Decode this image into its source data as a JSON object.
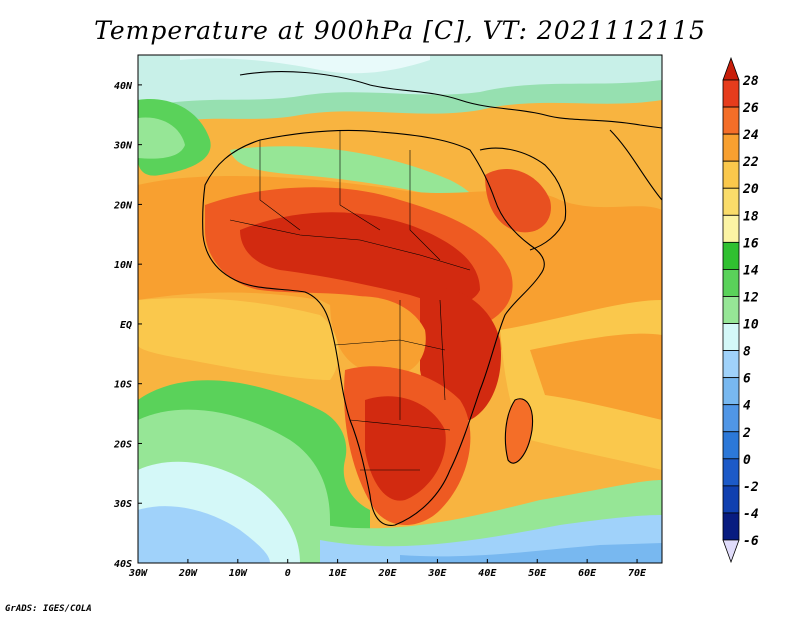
{
  "title": "Temperature at 900hPa [C], VT: 2021112115",
  "credit": "GrADS: IGES/COLA",
  "map": {
    "region": "Africa",
    "variable": "temperature at 900hPa",
    "units": "C",
    "lon_range": [
      -30,
      75
    ],
    "lat_range": [
      -40,
      45
    ],
    "x_ticks": [
      "30W",
      "20W",
      "10W",
      "0",
      "10E",
      "20E",
      "30E",
      "40E",
      "50E",
      "60E",
      "70E"
    ],
    "y_ticks": [
      "40S",
      "30S",
      "20S",
      "10S",
      "EQ",
      "10N",
      "20N",
      "30N",
      "40N"
    ],
    "colors": {
      "ocean_cool": "#5fa8f0",
      "hot_core": "#e03c1c",
      "warm": "#f8a830",
      "mild_green": "#5ad25a"
    }
  },
  "colorbar": {
    "labels": [
      "28",
      "26",
      "24",
      "22",
      "20",
      "18",
      "16",
      "14",
      "12",
      "10",
      "8",
      "6",
      "4",
      "2",
      "0",
      "-2",
      "-4",
      "-6"
    ],
    "colors": [
      "#c81e0a",
      "#e63c1c",
      "#f46e28",
      "#f8a030",
      "#fac84c",
      "#fadc6a",
      "#fcf4a4",
      "#30c030",
      "#5ad25a",
      "#96e696",
      "#d4f8f8",
      "#a0d2fa",
      "#78b8f0",
      "#5096e6",
      "#2c78d8",
      "#1c5ac8",
      "#1040b0",
      "#081c80",
      "#e0dcfa"
    ]
  }
}
